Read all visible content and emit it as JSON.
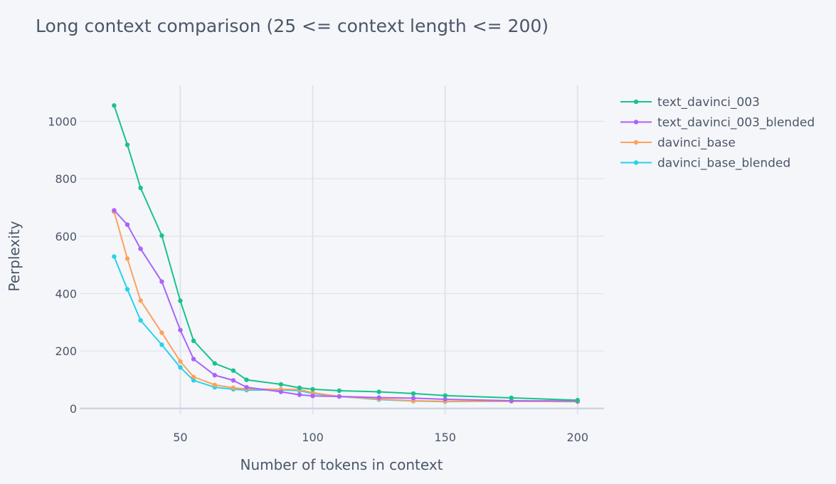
{
  "chart_data": {
    "type": "line",
    "title": "Long context comparison (25 <= context length <= 200)",
    "xlabel": "Number of tokens in context",
    "ylabel": "Perplexity",
    "xlim": [
      12,
      210
    ],
    "ylim": [
      -20,
      1125
    ],
    "xticks": [
      50,
      100,
      150,
      200
    ],
    "yticks": [
      0,
      200,
      400,
      600,
      800,
      1000
    ],
    "grid": true,
    "legend_position": "right",
    "series": [
      {
        "name": "text_davinci_003",
        "color": "#19c28a",
        "x": [
          25,
          30,
          35,
          43,
          50,
          55,
          63,
          70,
          75,
          88,
          95,
          100,
          110,
          125,
          138,
          150,
          175,
          200
        ],
        "y": [
          1055,
          918,
          768,
          602,
          375,
          236,
          157,
          132,
          100,
          84,
          72,
          67,
          62,
          58,
          52,
          45,
          37,
          29
        ]
      },
      {
        "name": "text_davinci_003_blended",
        "color": "#ab63fa",
        "x": [
          25,
          30,
          35,
          43,
          50,
          55,
          63,
          70,
          75,
          88,
          95,
          100,
          110,
          125,
          138,
          150,
          175,
          200
        ],
        "y": [
          690,
          640,
          556,
          442,
          273,
          172,
          116,
          98,
          74,
          58,
          48,
          44,
          42,
          38,
          36,
          32,
          27,
          26
        ]
      },
      {
        "name": "davinci_base",
        "color": "#ffa15a",
        "x": [
          25,
          30,
          35,
          43,
          50,
          55,
          63,
          70,
          75,
          88,
          95,
          100,
          110,
          125,
          138,
          150,
          175,
          200
        ],
        "y": [
          685,
          522,
          376,
          264,
          164,
          110,
          82,
          72,
          68,
          67,
          66,
          55,
          42,
          33,
          27,
          25,
          25,
          24
        ]
      },
      {
        "name": "davinci_base_blended",
        "color": "#28d1eb",
        "x": [
          25,
          30,
          35,
          43,
          50,
          55,
          63,
          70,
          75,
          88,
          95,
          100,
          110,
          125,
          138,
          150,
          175,
          200
        ],
        "y": [
          529,
          415,
          307,
          222,
          143,
          98,
          74,
          67,
          64,
          65,
          62,
          52,
          42,
          31,
          26,
          24,
          25,
          24
        ]
      }
    ]
  }
}
